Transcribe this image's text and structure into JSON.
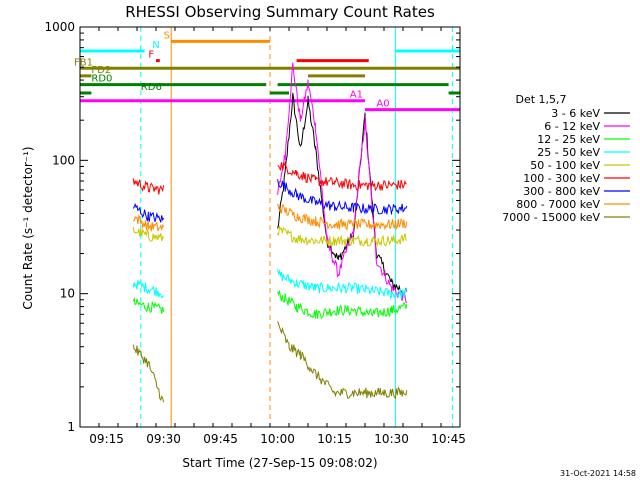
{
  "chart_data": {
    "type": "line",
    "title": "RHESSI Observing Summary Count Rates",
    "xlabel": "Start Time (27-Sep-15 09:08:02)",
    "ylabel": "Count Rate (s⁻¹ detector⁻¹)",
    "y_scale": "log",
    "ylim": [
      1,
      1000
    ],
    "xlim": [
      "09:08",
      "10:48"
    ],
    "x_ticks": [
      "09:15",
      "09:30",
      "09:45",
      "10:00",
      "10:15",
      "10:30",
      "10:45"
    ],
    "y_ticks": [
      "1",
      "10",
      "100",
      "1000"
    ],
    "legend_title": "Det 1,5,7",
    "legend_position": "right",
    "footer_date": "31-Oct-2021 14:58",
    "series": [
      {
        "name": "3 - 6 keV",
        "color": "#000000",
        "points": [
          [
            "09:29",
            8.5
          ],
          [
            "10:00",
            30
          ],
          [
            "10:02",
            80
          ],
          [
            "10:04",
            300
          ],
          [
            "10:06",
            120
          ],
          [
            "10:08",
            280
          ],
          [
            "10:10",
            120
          ],
          [
            "10:13",
            25
          ],
          [
            "10:16",
            18
          ],
          [
            "10:20",
            28
          ],
          [
            "10:23",
            220
          ],
          [
            "10:26",
            20
          ],
          [
            "10:30",
            12
          ],
          [
            "10:34",
            10
          ]
        ]
      },
      {
        "name": "6 - 12 keV",
        "color": "#ff00ff",
        "points": [
          [
            "09:29",
            9
          ],
          [
            "10:00",
            55
          ],
          [
            "10:02",
            110
          ],
          [
            "10:04",
            520
          ],
          [
            "10:06",
            200
          ],
          [
            "10:08",
            380
          ],
          [
            "10:10",
            180
          ],
          [
            "10:13",
            25
          ],
          [
            "10:16",
            14
          ],
          [
            "10:20",
            30
          ],
          [
            "10:23",
            200
          ],
          [
            "10:26",
            18
          ],
          [
            "10:30",
            11
          ],
          [
            "10:34",
            9
          ]
        ]
      },
      {
        "name": "12 - 25 keV",
        "color": "#00ff00",
        "points": [
          [
            "09:22",
            8.5
          ],
          [
            "09:26",
            8
          ],
          [
            "09:30",
            7.5
          ],
          [
            "10:00",
            10
          ],
          [
            "10:05",
            8
          ],
          [
            "10:10",
            7
          ],
          [
            "10:15",
            7.5
          ],
          [
            "10:20",
            7.5
          ],
          [
            "10:25",
            7
          ],
          [
            "10:30",
            7.5
          ],
          [
            "10:34",
            8
          ]
        ]
      },
      {
        "name": "25 - 50 keV",
        "color": "#00ffff",
        "points": [
          [
            "09:22",
            12
          ],
          [
            "09:26",
            11
          ],
          [
            "09:30",
            10
          ],
          [
            "10:00",
            14
          ],
          [
            "10:05",
            12
          ],
          [
            "10:10",
            11
          ],
          [
            "10:15",
            11
          ],
          [
            "10:20",
            11
          ],
          [
            "10:25",
            10.5
          ],
          [
            "10:30",
            10
          ],
          [
            "10:34",
            10
          ]
        ]
      },
      {
        "name": "50 - 100 keV",
        "color": "#c8c800",
        "points": [
          [
            "09:22",
            30
          ],
          [
            "09:26",
            27
          ],
          [
            "09:30",
            26
          ],
          [
            "10:00",
            30
          ],
          [
            "10:05",
            26
          ],
          [
            "10:10",
            25
          ],
          [
            "10:15",
            25
          ],
          [
            "10:20",
            25
          ],
          [
            "10:25",
            25
          ],
          [
            "10:30",
            25
          ],
          [
            "10:34",
            26
          ]
        ]
      },
      {
        "name": "100 - 300 keV",
        "color": "#ff0000",
        "points": [
          [
            "09:22",
            70
          ],
          [
            "09:26",
            62
          ],
          [
            "09:30",
            60
          ],
          [
            "10:00",
            95
          ],
          [
            "10:05",
            80
          ],
          [
            "10:10",
            70
          ],
          [
            "10:15",
            68
          ],
          [
            "10:20",
            65
          ],
          [
            "10:25",
            65
          ],
          [
            "10:30",
            65
          ],
          [
            "10:34",
            66
          ]
        ]
      },
      {
        "name": "300 - 800 keV",
        "color": "#0000ff",
        "points": [
          [
            "09:22",
            45
          ],
          [
            "09:26",
            38
          ],
          [
            "09:30",
            36
          ],
          [
            "10:00",
            70
          ],
          [
            "10:05",
            55
          ],
          [
            "10:10",
            48
          ],
          [
            "10:15",
            45
          ],
          [
            "10:20",
            44
          ],
          [
            "10:25",
            43
          ],
          [
            "10:30",
            43
          ],
          [
            "10:34",
            44
          ]
        ]
      },
      {
        "name": "800 - 7000 keV",
        "color": "#ff8c00",
        "points": [
          [
            "09:22",
            38
          ],
          [
            "09:26",
            32
          ],
          [
            "09:30",
            31
          ],
          [
            "10:00",
            45
          ],
          [
            "10:05",
            38
          ],
          [
            "10:10",
            35
          ],
          [
            "10:15",
            33
          ],
          [
            "10:20",
            33
          ],
          [
            "10:25",
            33
          ],
          [
            "10:30",
            33
          ],
          [
            "10:34",
            34
          ]
        ]
      },
      {
        "name": "7000 - 15000 keV",
        "color": "#808000",
        "points": [
          [
            "09:22",
            4
          ],
          [
            "09:26",
            3
          ],
          [
            "09:30",
            1.5
          ],
          [
            "10:00",
            6
          ],
          [
            "10:03",
            4
          ],
          [
            "10:06",
            3.5
          ],
          [
            "10:10",
            2.5
          ],
          [
            "10:15",
            1.8
          ],
          [
            "10:20",
            1.8
          ],
          [
            "10:25",
            1.8
          ],
          [
            "10:30",
            1.8
          ],
          [
            "10:34",
            1.8
          ]
        ]
      }
    ],
    "gaps": [
      [
        "09:31",
        "09:59"
      ]
    ],
    "vlines": [
      {
        "x": "09:24",
        "color": "#00ffff",
        "style": "dashed"
      },
      {
        "x": "09:32",
        "color": "#ff8c00",
        "style": "solid"
      },
      {
        "x": "09:58",
        "color": "#ff8c00",
        "style": "dashed"
      },
      {
        "x": "10:31",
        "color": "#00ffff",
        "style": "solid"
      },
      {
        "x": "10:46",
        "color": "#00ffff",
        "style": "dashed"
      }
    ],
    "flag_bars": [
      {
        "label": "N",
        "color": "#00ffff",
        "y": 660,
        "segments": [
          [
            "09:08",
            "09:25"
          ],
          [
            "10:31",
            "10:48"
          ]
        ],
        "label_x": "09:27"
      },
      {
        "label": "S",
        "color": "#ff8c00",
        "y": 780,
        "segments": [
          [
            "09:32",
            "09:58"
          ]
        ],
        "label_x": "09:30"
      },
      {
        "label": "F",
        "color": "#ff0000",
        "y": 560,
        "segments": [
          [
            "09:28",
            "09:29"
          ],
          [
            "10:05",
            "10:24"
          ]
        ],
        "label_x": "09:26"
      },
      {
        "label": "FB1",
        "color": "#808000",
        "y": 490,
        "segments": [
          [
            "09:08",
            "10:48"
          ]
        ],
        "label_x": "09:04"
      },
      {
        "label": "FD2",
        "color": "#808000",
        "y": 430,
        "segments": [
          [
            "09:08",
            "09:11"
          ],
          [
            "10:08",
            "10:23"
          ]
        ],
        "label_x": "09:11"
      },
      {
        "label": "RD0",
        "color": "#008000",
        "y": 370,
        "segments": [
          [
            "09:08",
            "09:57"
          ],
          [
            "10:00",
            "10:45"
          ]
        ],
        "label_x": "09:11"
      },
      {
        "label": "RD6",
        "color": "#008000",
        "y": 320,
        "segments": [
          [
            "09:08",
            "09:11"
          ],
          [
            "09:58",
            "10:03"
          ],
          [
            "10:45",
            "10:48"
          ]
        ],
        "label_x": "09:24"
      },
      {
        "label": "A1",
        "color": "#ff00ff",
        "y": 280,
        "segments": [
          [
            "09:08",
            "10:23"
          ]
        ],
        "label_x": "10:19"
      },
      {
        "label": "A0",
        "color": "#ff00ff",
        "y": 240,
        "segments": [
          [
            "10:23",
            "10:48"
          ]
        ],
        "label_x": "10:26"
      }
    ]
  }
}
